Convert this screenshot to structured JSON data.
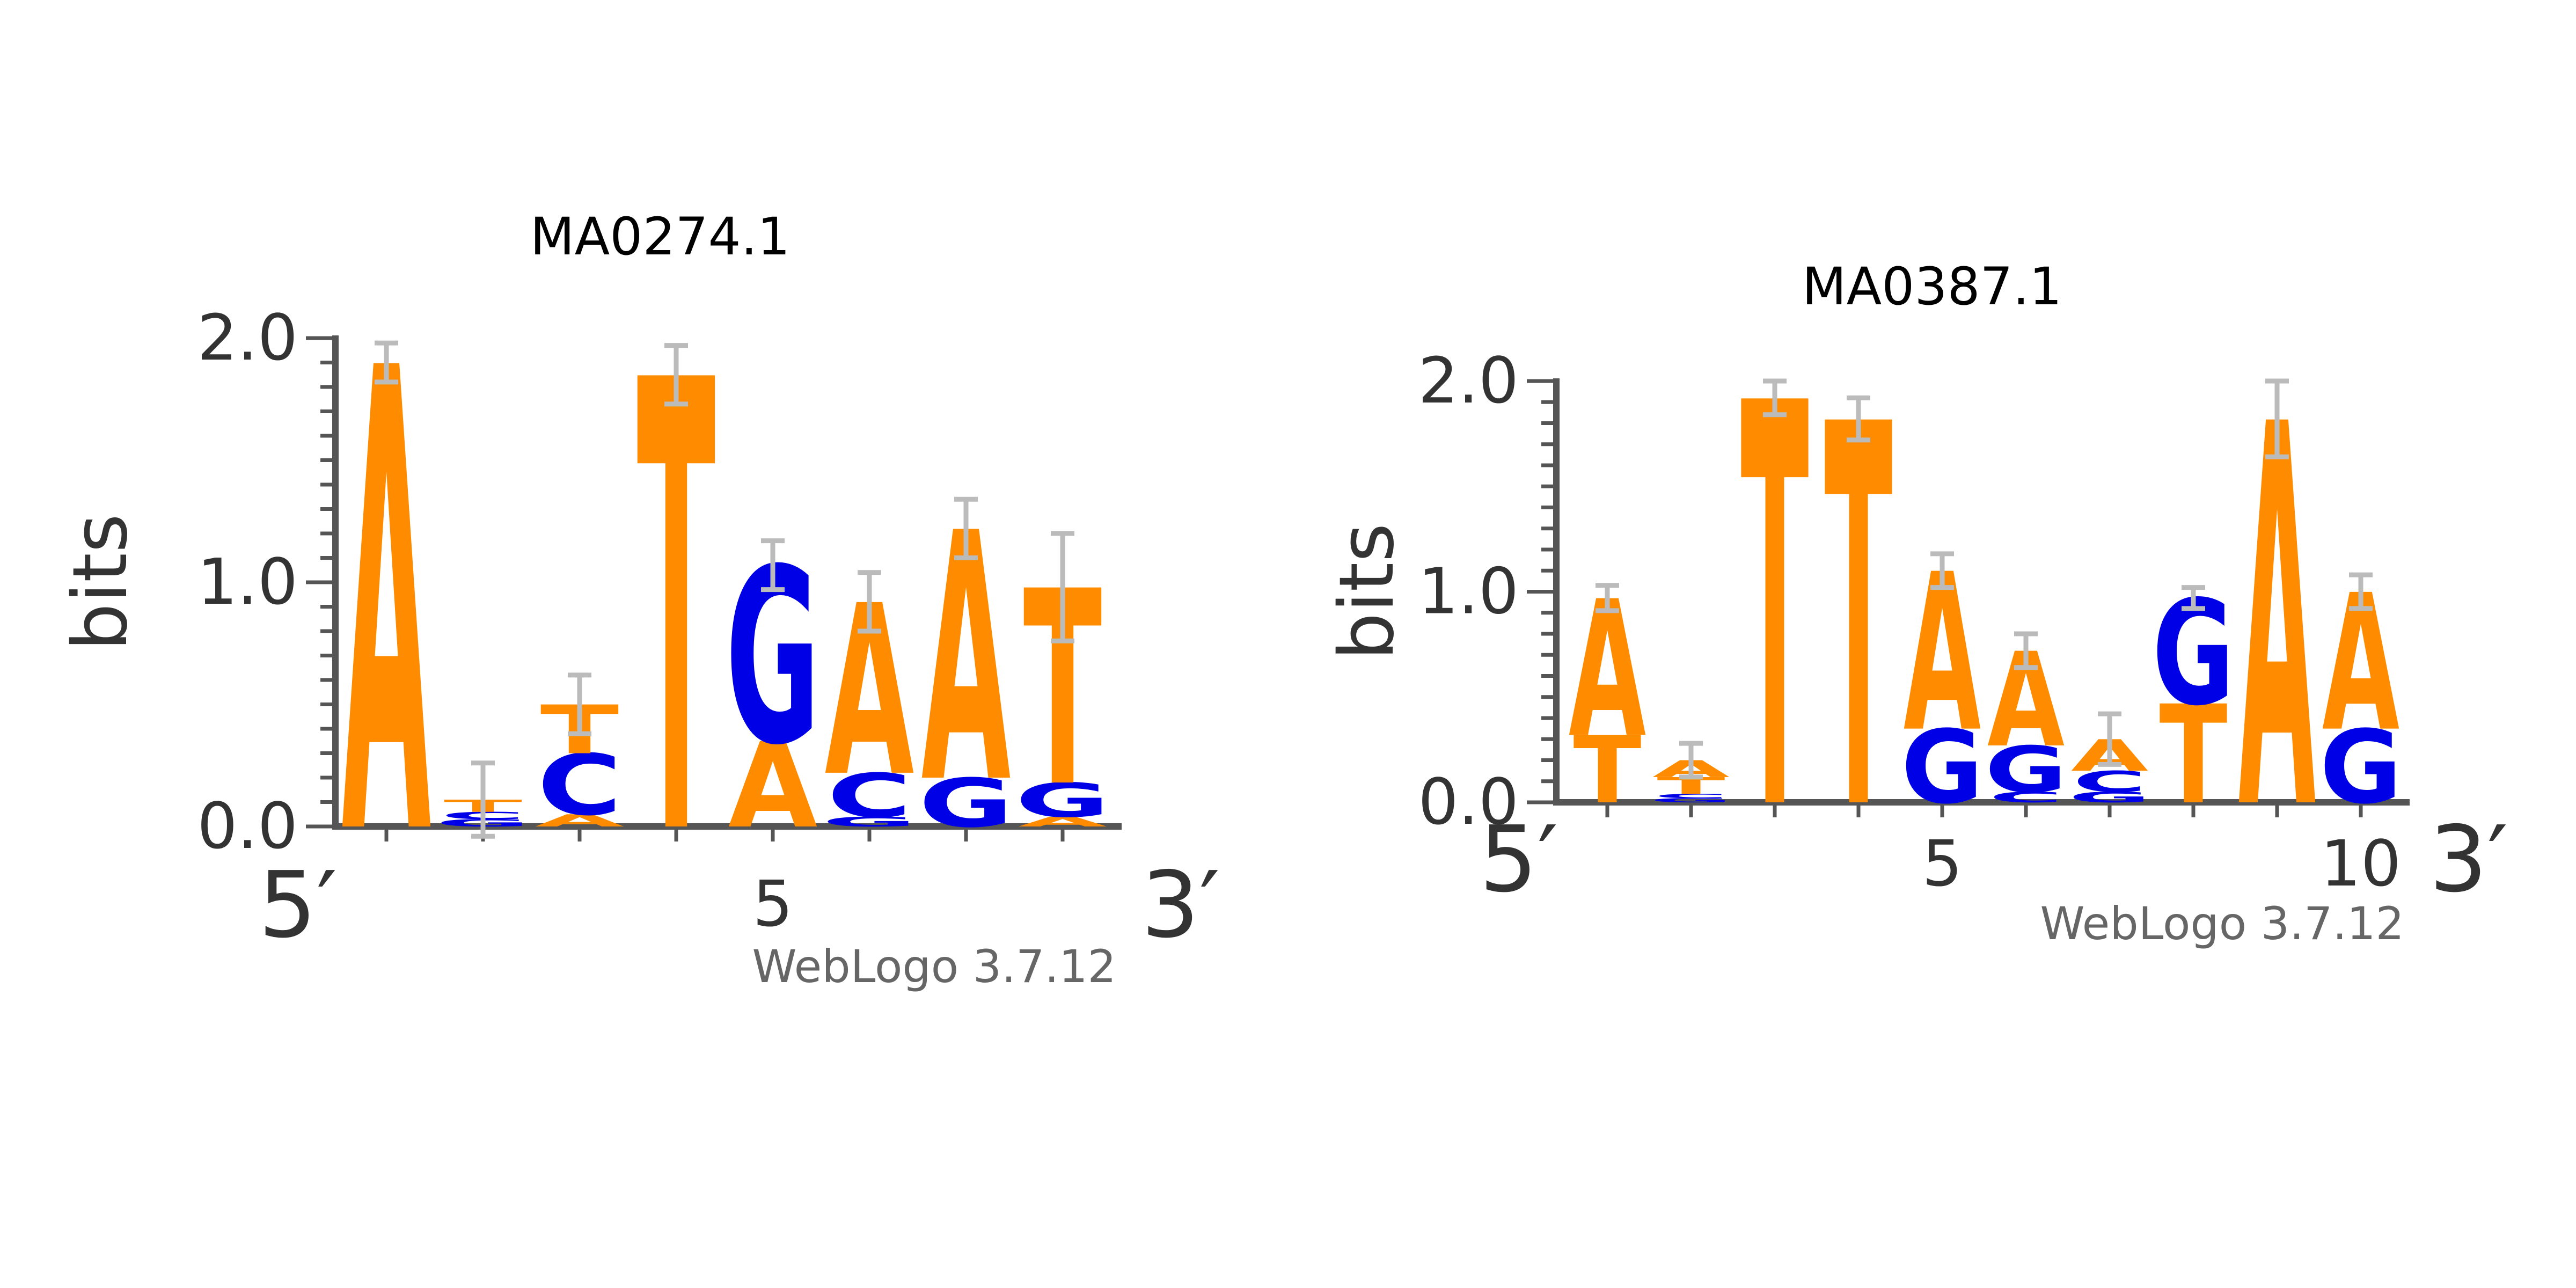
{
  "colors": {
    "A": "#ff8c00",
    "T": "#ff8c00",
    "G": "#0000e6",
    "C": "#0000e6",
    "axis": "#555555",
    "error_bar": "#bbbbbb"
  },
  "chart_data": [
    {
      "type": "sequence-logo",
      "title": "MA0274.1",
      "ylabel": "bits",
      "ylim": [
        0,
        2.0
      ],
      "yticks": [
        "0.0",
        "1.0",
        "2.0"
      ],
      "x_ends": [
        "5′",
        "3′"
      ],
      "x_ticks_labeled": {
        "5": "5"
      },
      "credit": "WebLogo 3.7.12",
      "positions": [
        {
          "pos": 1,
          "stack": [
            {
              "letter": "A",
              "height": 1.9
            }
          ],
          "error": 0.08
        },
        {
          "pos": 2,
          "stack": [
            {
              "letter": "G",
              "height": 0.03
            },
            {
              "letter": "C",
              "height": 0.03
            },
            {
              "letter": "T",
              "height": 0.05
            }
          ],
          "error": 0.15
        },
        {
          "pos": 3,
          "stack": [
            {
              "letter": "A",
              "height": 0.05
            },
            {
              "letter": "C",
              "height": 0.25
            },
            {
              "letter": "T",
              "height": 0.2
            }
          ],
          "error": 0.12
        },
        {
          "pos": 4,
          "stack": [
            {
              "letter": "T",
              "height": 1.85
            }
          ],
          "error": 0.12
        },
        {
          "pos": 5,
          "stack": [
            {
              "letter": "A",
              "height": 0.35
            },
            {
              "letter": "G",
              "height": 0.72
            }
          ],
          "error": 0.1
        },
        {
          "pos": 6,
          "stack": [
            {
              "letter": "G",
              "height": 0.04
            },
            {
              "letter": "C",
              "height": 0.18
            },
            {
              "letter": "A",
              "height": 0.7
            }
          ],
          "error": 0.12
        },
        {
          "pos": 7,
          "stack": [
            {
              "letter": "G",
              "height": 0.2
            },
            {
              "letter": "A",
              "height": 1.02
            }
          ],
          "error": 0.12
        },
        {
          "pos": 8,
          "stack": [
            {
              "letter": "A",
              "height": 0.04
            },
            {
              "letter": "G",
              "height": 0.14
            },
            {
              "letter": "T",
              "height": 0.8
            }
          ],
          "error": 0.22
        }
      ]
    },
    {
      "type": "sequence-logo",
      "title": "MA0387.1",
      "ylabel": "bits",
      "ylim": [
        0,
        2.0
      ],
      "yticks": [
        "0.0",
        "1.0",
        "2.0"
      ],
      "x_ends": [
        "5′",
        "3′"
      ],
      "x_ticks_labeled": {
        "5": "5",
        "10": "10"
      },
      "credit": "WebLogo 3.7.12",
      "positions": [
        {
          "pos": 1,
          "stack": [
            {
              "letter": "T",
              "height": 0.32
            },
            {
              "letter": "A",
              "height": 0.65
            }
          ],
          "error": 0.06
        },
        {
          "pos": 2,
          "stack": [
            {
              "letter": "G",
              "height": 0.02
            },
            {
              "letter": "C",
              "height": 0.02
            },
            {
              "letter": "T",
              "height": 0.08
            },
            {
              "letter": "A",
              "height": 0.08
            }
          ],
          "error": 0.08
        },
        {
          "pos": 3,
          "stack": [
            {
              "letter": "T",
              "height": 1.92
            }
          ],
          "error": 0.08
        },
        {
          "pos": 4,
          "stack": [
            {
              "letter": "T",
              "height": 1.82
            }
          ],
          "error": 0.1
        },
        {
          "pos": 5,
          "stack": [
            {
              "letter": "G",
              "height": 0.35
            },
            {
              "letter": "A",
              "height": 0.75
            }
          ],
          "error": 0.08
        },
        {
          "pos": 6,
          "stack": [
            {
              "letter": "C",
              "height": 0.05
            },
            {
              "letter": "G",
              "height": 0.22
            },
            {
              "letter": "A",
              "height": 0.45
            }
          ],
          "error": 0.08
        },
        {
          "pos": 7,
          "stack": [
            {
              "letter": "G",
              "height": 0.05
            },
            {
              "letter": "C",
              "height": 0.1
            },
            {
              "letter": "A",
              "height": 0.15
            }
          ],
          "error": 0.12
        },
        {
          "pos": 8,
          "stack": [
            {
              "letter": "T",
              "height": 0.47
            },
            {
              "letter": "G",
              "height": 0.5
            }
          ],
          "error": 0.05
        },
        {
          "pos": 9,
          "stack": [
            {
              "letter": "A",
              "height": 1.82
            }
          ],
          "error": 0.18
        },
        {
          "pos": 10,
          "stack": [
            {
              "letter": "G",
              "height": 0.35
            },
            {
              "letter": "A",
              "height": 0.65
            }
          ],
          "error": 0.08
        }
      ]
    }
  ]
}
